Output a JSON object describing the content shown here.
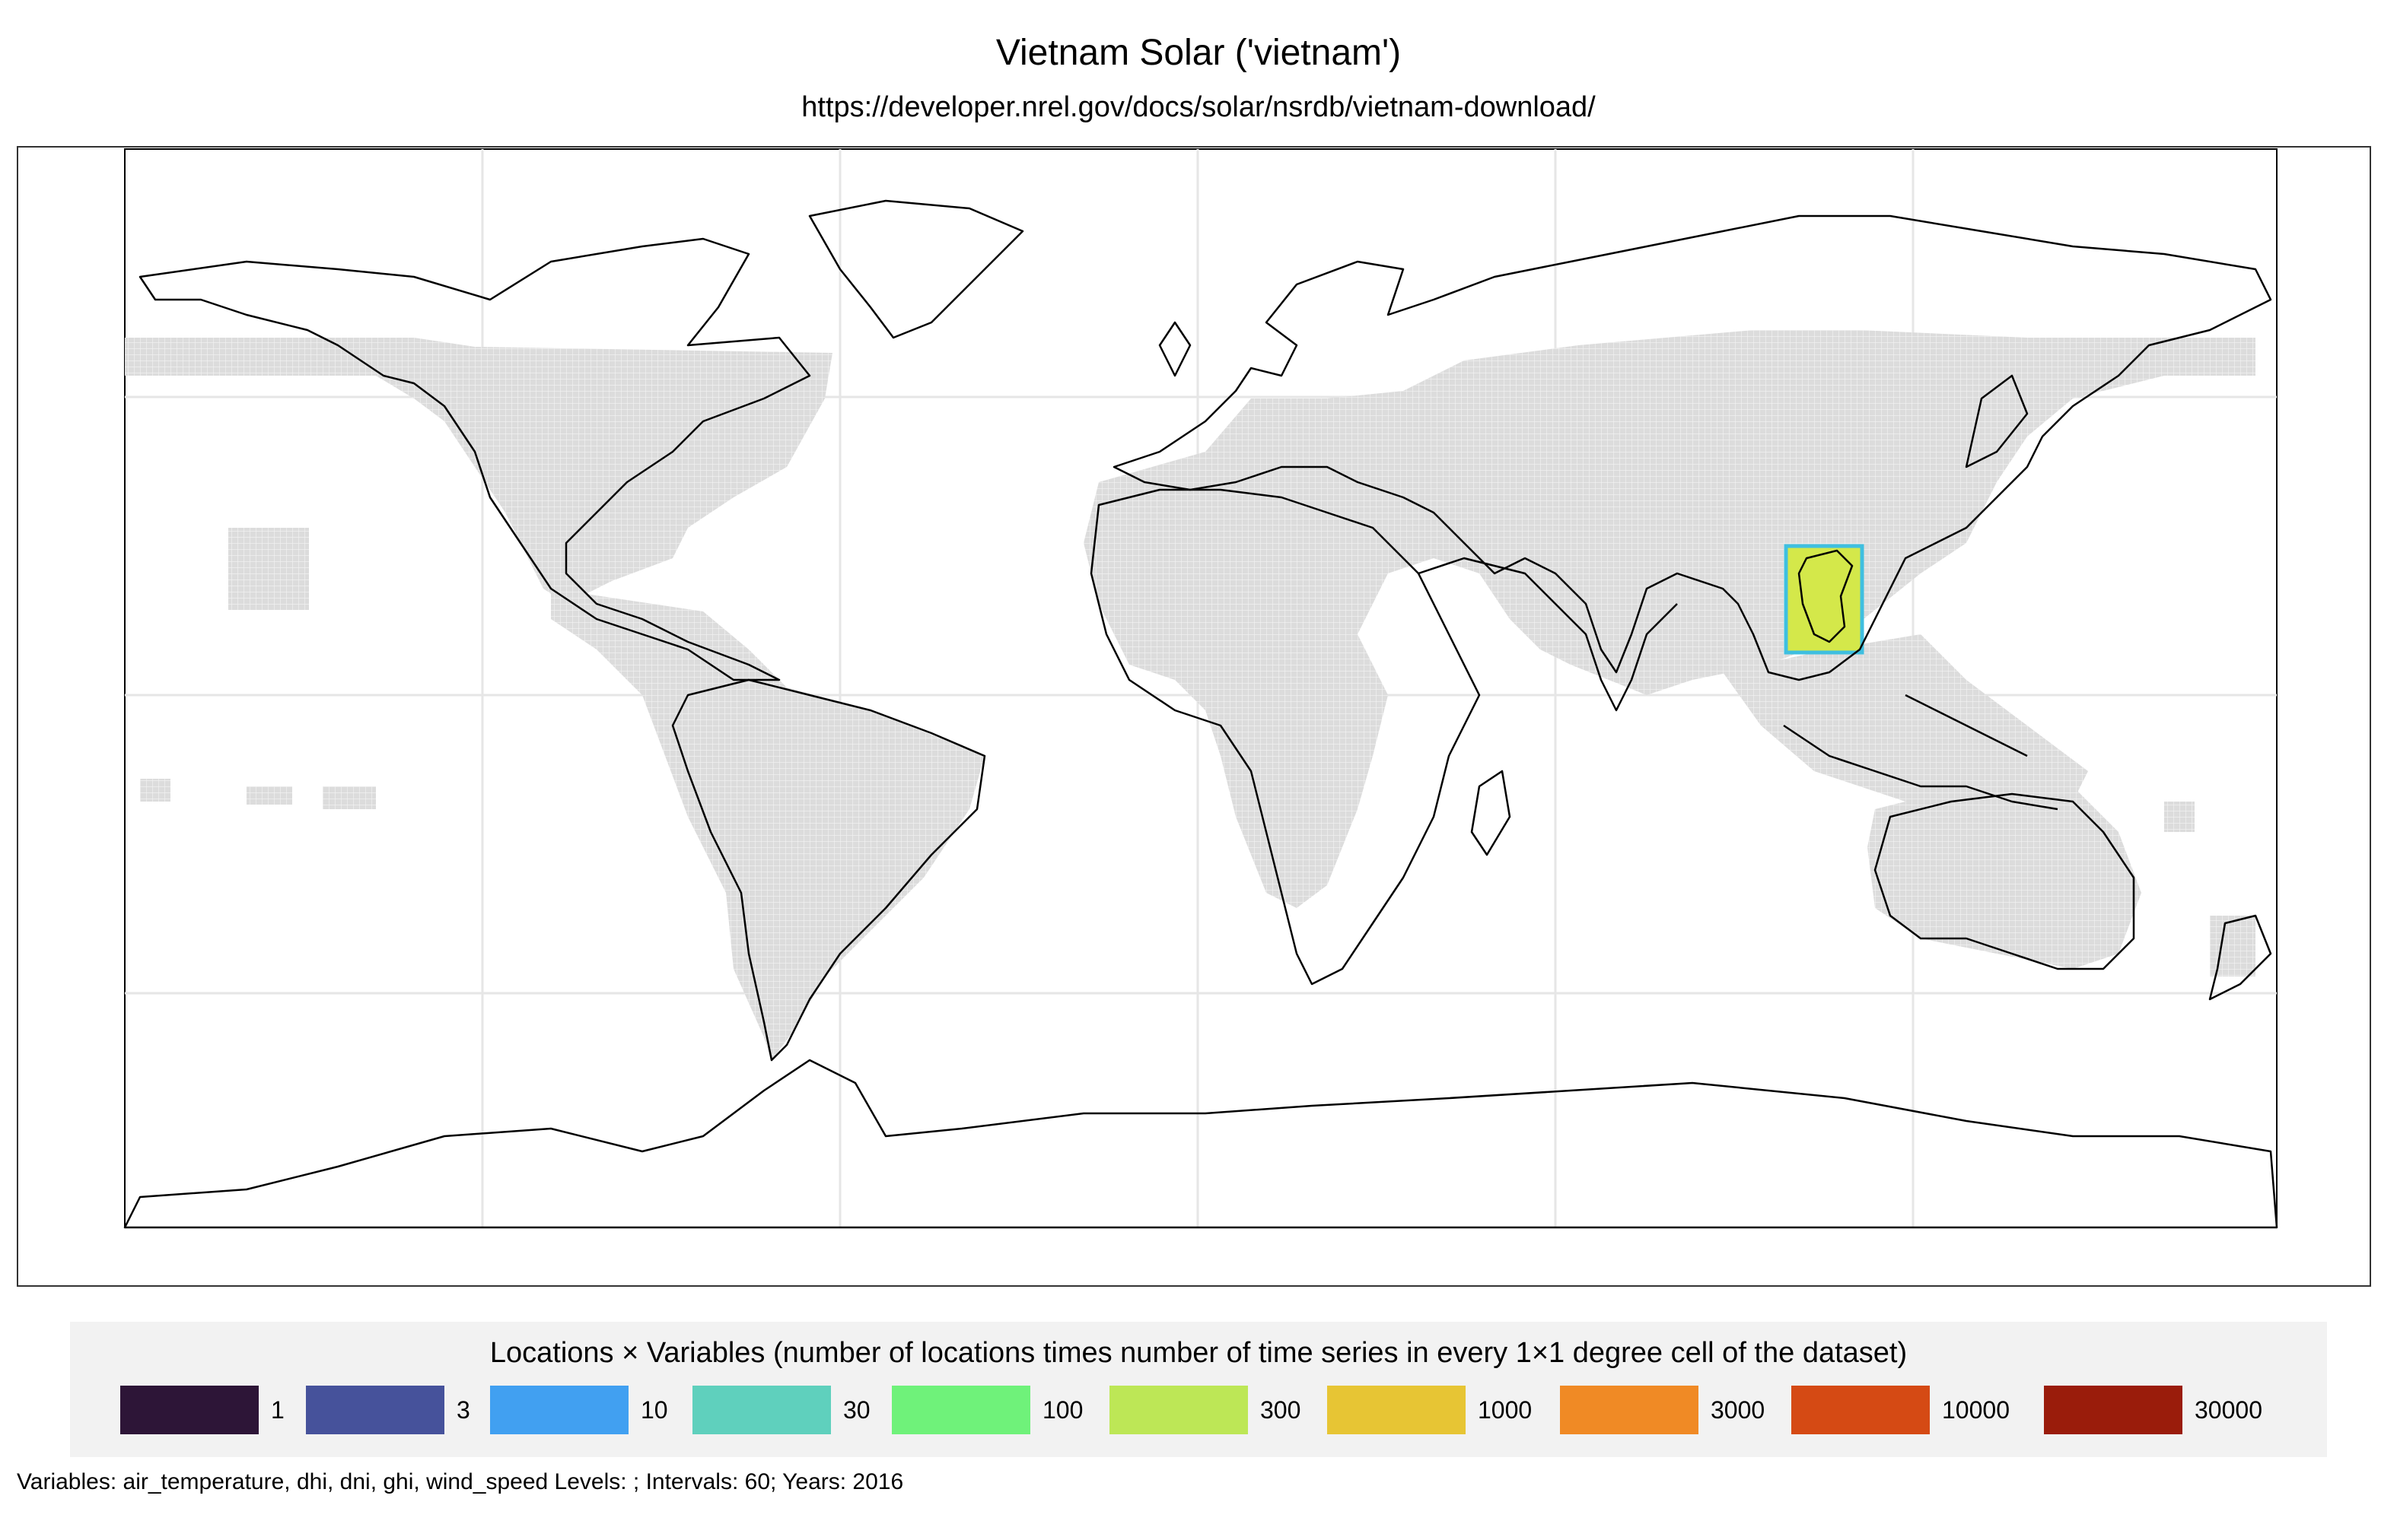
{
  "header": {
    "title": "Vietnam Solar ('vietnam')",
    "subtitle": "https://developer.nrel.gov/docs/solar/nsrdb/vietnam-download/"
  },
  "map": {
    "projection": "equirectangular",
    "lon_range": [
      -180,
      180
    ],
    "lat_range": [
      -90,
      90
    ],
    "land_color": "#ffffff",
    "coverage_color": "#d9d9d9",
    "graticule_color": "#e6e6e6",
    "outline_color": "#000000",
    "highlight_region": {
      "name": "vietnam",
      "lon_range": [
        102,
        110
      ],
      "lat_range": [
        8,
        24
      ],
      "fill": "#d4e84a",
      "border": "#3fbfe0"
    }
  },
  "legend": {
    "title": "Locations × Variables (number of locations times number of time series in every 1×1 degree cell of the dataset)",
    "items": [
      {
        "label": "1",
        "color": "#2d1537"
      },
      {
        "label": "3",
        "color": "#46529b"
      },
      {
        "label": "10",
        "color": "#41a0f1"
      },
      {
        "label": "30",
        "color": "#5fd0bd"
      },
      {
        "label": "100",
        "color": "#6ff27a"
      },
      {
        "label": "300",
        "color": "#bde756"
      },
      {
        "label": "1000",
        "color": "#e7c534"
      },
      {
        "label": "3000",
        "color": "#f08a25"
      },
      {
        "label": "10000",
        "color": "#d54a14"
      },
      {
        "label": "30000",
        "color": "#9a1c0b"
      }
    ]
  },
  "footnote": "Variables: air_temperature, dhi, dni, ghi, wind_speed Levels: ; Intervals: 60; Years: 2016"
}
